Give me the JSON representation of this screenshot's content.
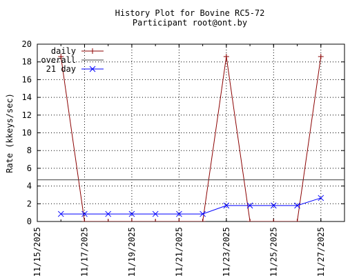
{
  "chart_data": {
    "type": "line",
    "title_lines": [
      "History Plot for Bovine RC5-72",
      "Participant root@ont.by"
    ],
    "xlabel": "",
    "ylabel": "Rate (kkeys/sec)",
    "x_ticks": [
      "11/15/2025",
      "11/17/2025",
      "11/19/2025",
      "11/21/2025",
      "11/23/2025",
      "11/25/2025",
      "11/27/2025"
    ],
    "y_ticks": [
      0,
      2,
      4,
      6,
      8,
      10,
      12,
      14,
      16,
      18,
      20
    ],
    "ylim": [
      0,
      20
    ],
    "xlim": [
      "11/15/2025",
      "11/28/2025"
    ],
    "grid": true,
    "legend_position": "top-left",
    "series": [
      {
        "name": "daily",
        "color": "#8b0000",
        "marker": "plus",
        "points": [
          {
            "x": "11/16/2025",
            "y": 18.6
          },
          {
            "x": "11/17/2025",
            "y": 0
          },
          {
            "x": "11/18/2025",
            "y": 0
          },
          {
            "x": "11/19/2025",
            "y": 0
          },
          {
            "x": "11/20/2025",
            "y": 0
          },
          {
            "x": "11/21/2025",
            "y": 0
          },
          {
            "x": "11/22/2025",
            "y": 0
          },
          {
            "x": "11/23/2025",
            "y": 18.6
          },
          {
            "x": "11/24/2025",
            "y": 0
          },
          {
            "x": "11/25/2025",
            "y": 0
          },
          {
            "x": "11/26/2025",
            "y": 0
          },
          {
            "x": "11/27/2025",
            "y": 18.6
          }
        ]
      },
      {
        "name": "overall",
        "color": "#404040",
        "marker": "none",
        "points": [
          {
            "x": "11/15/2025",
            "y": 4.7
          },
          {
            "x": "11/28/2025",
            "y": 4.7
          }
        ]
      },
      {
        "name": "21 day",
        "color": "#0000ff",
        "marker": "x",
        "points": [
          {
            "x": "11/16/2025",
            "y": 0.85
          },
          {
            "x": "11/17/2025",
            "y": 0.85
          },
          {
            "x": "11/18/2025",
            "y": 0.85
          },
          {
            "x": "11/19/2025",
            "y": 0.85
          },
          {
            "x": "11/20/2025",
            "y": 0.85
          },
          {
            "x": "11/21/2025",
            "y": 0.85
          },
          {
            "x": "11/22/2025",
            "y": 0.85
          },
          {
            "x": "11/23/2025",
            "y": 1.8
          },
          {
            "x": "11/24/2025",
            "y": 1.8
          },
          {
            "x": "11/25/2025",
            "y": 1.8
          },
          {
            "x": "11/26/2025",
            "y": 1.8
          },
          {
            "x": "11/27/2025",
            "y": 2.65
          }
        ]
      }
    ]
  }
}
